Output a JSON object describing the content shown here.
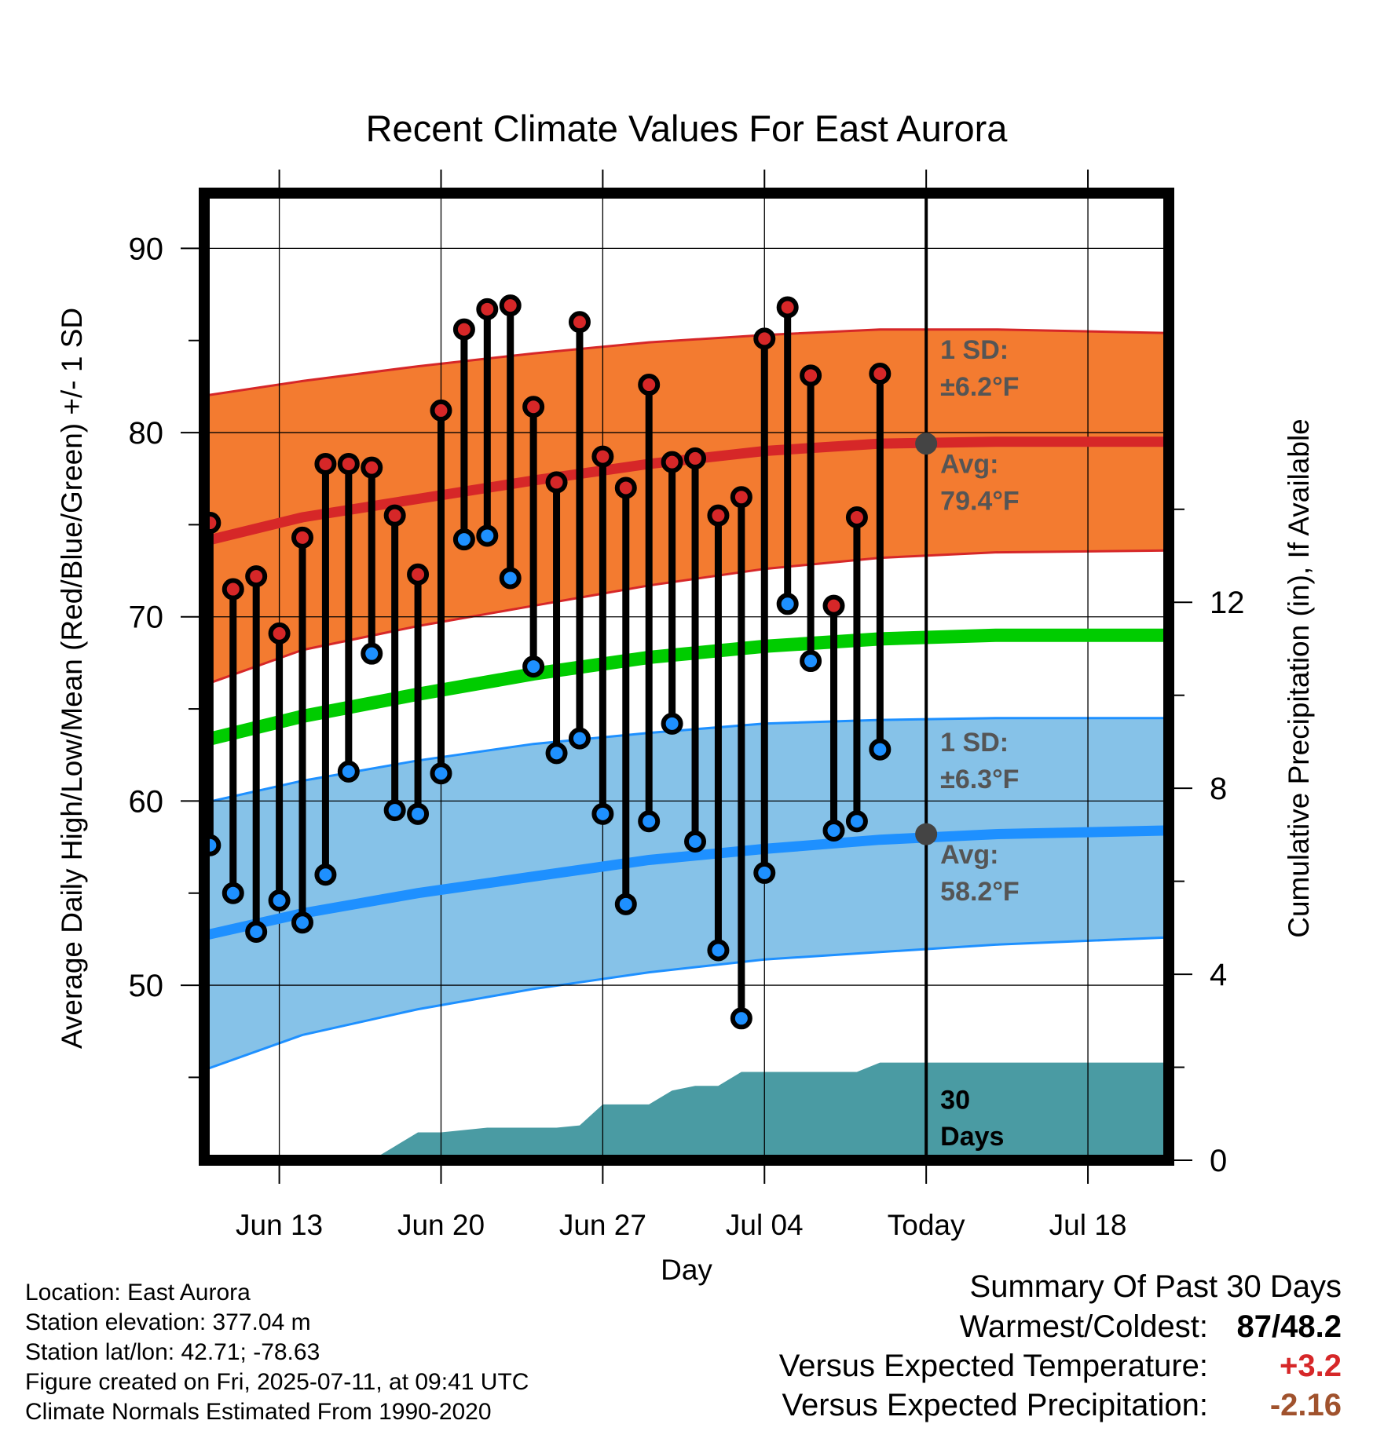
{
  "chart_data": {
    "type": "line",
    "title": "Recent Climate Values For East Aurora",
    "xlabel": "Day",
    "ylabel": "Average Daily High/Low/Mean (Red/Blue/Green) +/- 1 SD",
    "y2label": "Cumulative Precipitation (in), If Available",
    "ylim": [
      40.5,
      93
    ],
    "y_ticks": [
      "50",
      "60",
      "70",
      "80",
      "90"
    ],
    "y2lim": [
      0,
      20.8
    ],
    "y2_ticks": [
      "0",
      "4",
      "8",
      "12"
    ],
    "xlim": [
      "2025-06-09 18:00",
      "2025-07-21 12:00"
    ],
    "x_ticks": [
      {
        "date": "2025-06-13",
        "label": "Jun 13"
      },
      {
        "date": "2025-06-20",
        "label": "Jun 20"
      },
      {
        "date": "2025-06-27",
        "label": "Jun 27"
      },
      {
        "date": "2025-07-04",
        "label": "Jul 04"
      },
      {
        "date": "2025-07-11",
        "label": "Today"
      },
      {
        "date": "2025-07-18",
        "label": "Jul 18"
      }
    ],
    "today": "2025-07-11",
    "grid": true,
    "normals": {
      "dates": [
        "2025-06-09 18:00",
        "2025-06-14",
        "2025-06-19",
        "2025-06-24",
        "2025-06-29",
        "2025-07-04",
        "2025-07-09",
        "2025-07-14",
        "2025-07-21 12:00"
      ],
      "high_avg": [
        74.1,
        75.4,
        76.4,
        77.4,
        78.3,
        79.0,
        79.4,
        79.5,
        79.5
      ],
      "high_upper": [
        82.0,
        82.8,
        83.6,
        84.3,
        84.9,
        85.3,
        85.6,
        85.6,
        85.4
      ],
      "high_lower": [
        66.3,
        68.2,
        69.5,
        70.6,
        71.7,
        72.6,
        73.2,
        73.5,
        73.6
      ],
      "mean_avg": [
        63.3,
        64.6,
        65.8,
        66.9,
        67.8,
        68.4,
        68.8,
        69.0,
        69.0
      ],
      "low_avg": [
        52.7,
        53.9,
        55.0,
        55.9,
        56.8,
        57.4,
        57.9,
        58.2,
        58.4
      ],
      "low_upper": [
        59.9,
        61.1,
        62.2,
        63.1,
        63.7,
        64.2,
        64.4,
        64.5,
        64.5
      ],
      "low_lower": [
        45.4,
        47.3,
        48.7,
        49.8,
        50.7,
        51.4,
        51.8,
        52.2,
        52.6
      ]
    },
    "series": [
      {
        "name": "High",
        "color": "#d62728",
        "dates": [
          "2025-06-10",
          "2025-06-11",
          "2025-06-12",
          "2025-06-13",
          "2025-06-14",
          "2025-06-15",
          "2025-06-16",
          "2025-06-17",
          "2025-06-18",
          "2025-06-19",
          "2025-06-20",
          "2025-06-21",
          "2025-06-22",
          "2025-06-23",
          "2025-06-24",
          "2025-06-25",
          "2025-06-26",
          "2025-06-27",
          "2025-06-28",
          "2025-06-29",
          "2025-06-30",
          "2025-07-01",
          "2025-07-02",
          "2025-07-03",
          "2025-07-04",
          "2025-07-05",
          "2025-07-06",
          "2025-07-07",
          "2025-07-08",
          "2025-07-09",
          "2025-07-10"
        ],
        "values": [
          75.1,
          71.5,
          72.2,
          69.1,
          74.3,
          78.3,
          78.3,
          78.1,
          75.5,
          72.3,
          81.2,
          85.6,
          86.7,
          86.9,
          81.4,
          77.3,
          86.0,
          78.7,
          77.0,
          82.6,
          78.4,
          78.6,
          75.5,
          76.5,
          85.1,
          86.8,
          83.1,
          70.6,
          75.4,
          83.2,
          null
        ]
      },
      {
        "name": "Low",
        "color": "#1e90ff",
        "dates": [
          "2025-06-10",
          "2025-06-11",
          "2025-06-12",
          "2025-06-13",
          "2025-06-14",
          "2025-06-15",
          "2025-06-16",
          "2025-06-17",
          "2025-06-18",
          "2025-06-19",
          "2025-06-20",
          "2025-06-21",
          "2025-06-22",
          "2025-06-23",
          "2025-06-24",
          "2025-06-25",
          "2025-06-26",
          "2025-06-27",
          "2025-06-28",
          "2025-06-29",
          "2025-06-30",
          "2025-07-01",
          "2025-07-02",
          "2025-07-03",
          "2025-07-04",
          "2025-07-05",
          "2025-07-06",
          "2025-07-07",
          "2025-07-08",
          "2025-07-09",
          "2025-07-10"
        ],
        "values": [
          57.6,
          55.0,
          52.9,
          54.6,
          53.4,
          56.0,
          61.6,
          68.0,
          59.5,
          59.3,
          61.5,
          74.2,
          74.4,
          72.1,
          67.3,
          62.6,
          63.4,
          59.3,
          54.4,
          58.9,
          64.2,
          57.8,
          51.9,
          48.2,
          56.1,
          70.7,
          67.6,
          58.4,
          58.9,
          62.8,
          null
        ]
      },
      {
        "name": "Cumulative Precipitation",
        "color": "#4a9ba3",
        "dates": [
          "2025-06-15",
          "2025-06-16",
          "2025-06-17",
          "2025-06-18",
          "2025-06-19",
          "2025-06-20",
          "2025-06-21",
          "2025-06-22",
          "2025-06-23",
          "2025-06-24",
          "2025-06-25",
          "2025-06-26",
          "2025-06-27",
          "2025-06-28",
          "2025-06-29",
          "2025-06-30",
          "2025-07-01",
          "2025-07-02",
          "2025-07-03",
          "2025-07-04",
          "2025-07-05",
          "2025-07-06",
          "2025-07-07",
          "2025-07-08",
          "2025-07-09",
          "2025-07-10",
          "2025-07-11",
          "2025-07-21 12:00"
        ],
        "values": [
          0,
          0,
          0,
          0.3,
          0.6,
          0.6,
          0.65,
          0.7,
          0.7,
          0.7,
          0.7,
          0.75,
          1.2,
          1.2,
          1.2,
          1.5,
          1.6,
          1.6,
          1.9,
          1.9,
          1.9,
          1.9,
          1.9,
          1.9,
          2.1,
          2.1,
          2.1,
          2.1
        ]
      }
    ],
    "annotations": {
      "high_sd": "1 SD:",
      "high_sd_value": "±6.2°F",
      "high_avg_label": "Avg:",
      "high_avg_value": "79.4°F",
      "low_sd": "1 SD:",
      "low_sd_value": "±6.3°F",
      "low_avg_label": "Avg:",
      "low_avg_value": "58.2°F",
      "days_line1": "30",
      "days_line2": "Days"
    },
    "colors": {
      "high_band": "#f37b30",
      "high_line": "#d62728",
      "mean_line": "#00cc00",
      "low_band": "#86c2e8",
      "low_line": "#1e90ff",
      "precip": "#4a9ba3",
      "annotation": "#555555",
      "today_marker": "#444444"
    }
  },
  "footer": {
    "location": "Location: East Aurora",
    "elevation": "Station elevation: 377.04 m",
    "latlon": "Station lat/lon: 42.71; -78.63",
    "created": "Figure created on Fri, 2025-07-11, at 09:41 UTC",
    "normals": "Climate Normals Estimated From 1990-2020"
  },
  "summary": {
    "title": "Summary Of Past 30 Days",
    "warmest_label": "Warmest/Coldest:",
    "warmest_value": "87/48.2",
    "temp_label": "Versus Expected Temperature:",
    "temp_value": "+3.2",
    "temp_color": "#d62728",
    "precip_label": "Versus Expected Precipitation:",
    "precip_value": "-2.16",
    "precip_color": "#a0522d"
  }
}
